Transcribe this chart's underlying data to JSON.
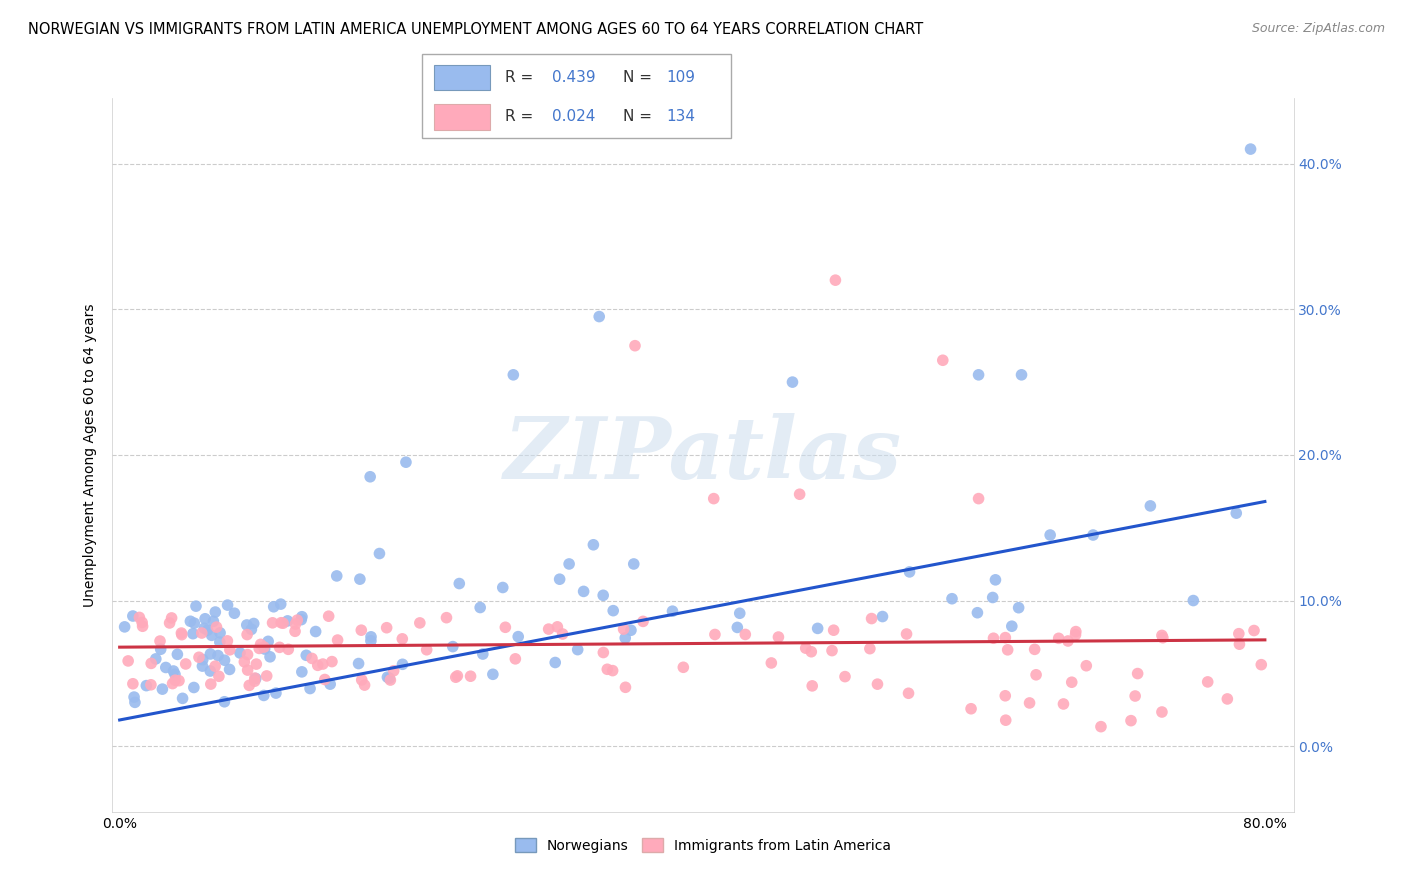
{
  "title": "NORWEGIAN VS IMMIGRANTS FROM LATIN AMERICA UNEMPLOYMENT AMONG AGES 60 TO 64 YEARS CORRELATION CHART",
  "source": "Source: ZipAtlas.com",
  "ylabel": "Unemployment Among Ages 60 to 64 years",
  "xlim": [
    -0.005,
    0.82
  ],
  "ylim": [
    -0.045,
    0.445
  ],
  "xticks": [
    0.0,
    0.2,
    0.4,
    0.6,
    0.8
  ],
  "xticklabels": [
    "0.0%",
    "",
    "",
    "",
    "80.0%"
  ],
  "yticks": [
    0.0,
    0.1,
    0.2,
    0.3,
    0.4
  ],
  "yticklabels": [
    "0.0%",
    "10.0%",
    "20.0%",
    "30.0%",
    "40.0%"
  ],
  "blue_scatter_color": "#99bbee",
  "pink_scatter_color": "#ffaabb",
  "blue_line_color": "#2255cc",
  "pink_line_color": "#cc3344",
  "tick_color": "#4477cc",
  "R_blue": 0.439,
  "N_blue": 109,
  "R_pink": 0.024,
  "N_pink": 134,
  "legend_labels": [
    "Norwegians",
    "Immigrants from Latin America"
  ],
  "watermark": "ZIPatlas",
  "blue_line_start_y": 0.018,
  "blue_line_end_y": 0.168,
  "pink_line_start_y": 0.068,
  "pink_line_end_y": 0.073
}
